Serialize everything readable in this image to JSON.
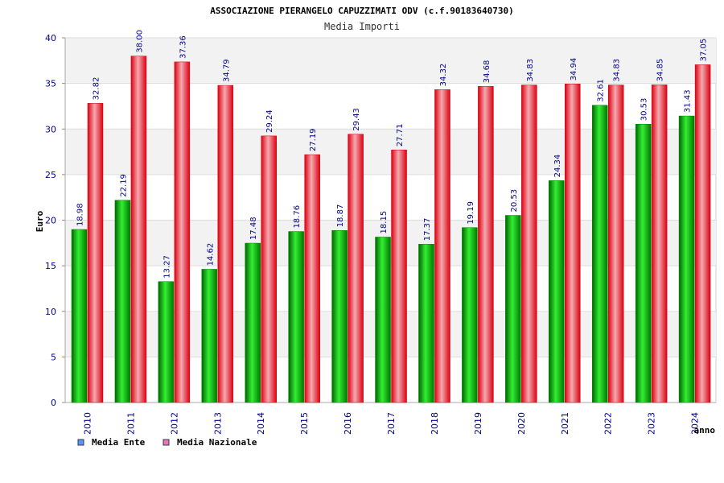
{
  "chart_data": {
    "type": "bar",
    "title": "ASSOCIAZIONE PIERANGELO CAPUZZIMATI ODV (c.f.90183640730)",
    "subtitle": "Media Importi",
    "xlabel": "anno",
    "ylabel": "Euro",
    "ylim": [
      0,
      40
    ],
    "yticks": [
      0,
      5,
      10,
      15,
      20,
      25,
      30,
      35,
      40
    ],
    "categories": [
      "2010",
      "2011",
      "2012",
      "2013",
      "2014",
      "2015",
      "2016",
      "2017",
      "2018",
      "2019",
      "2020",
      "2021",
      "2022",
      "2023",
      "2024"
    ],
    "series": [
      {
        "name": "Media Ente",
        "color": "#00aa00",
        "values": [
          18.98,
          22.19,
          13.27,
          14.62,
          17.48,
          18.76,
          18.87,
          18.15,
          17.37,
          19.19,
          20.53,
          24.34,
          32.61,
          30.53,
          31.43
        ],
        "labels": [
          "18.98",
          "22.19",
          "13.27",
          "14.62",
          "17.48",
          "18.76",
          "18.87",
          "18.15",
          "17.37",
          "19.19",
          "20.53",
          "24.34",
          "32.61",
          "30.53",
          "31.43"
        ]
      },
      {
        "name": "Media Nazionale",
        "color": "#ee1122",
        "values": [
          32.82,
          38.0,
          37.36,
          34.79,
          29.24,
          27.19,
          29.43,
          27.71,
          34.32,
          34.68,
          34.83,
          34.94,
          34.83,
          34.85,
          37.05
        ],
        "labels": [
          "32.82",
          "38.00",
          "37.36",
          "34.79",
          "29.24",
          "27.19",
          "29.43",
          "27.71",
          "34.32",
          "34.68",
          "34.83",
          "34.94",
          "34.83",
          "34.85",
          "37.05"
        ]
      }
    ],
    "legend": {
      "position": "bottom-left",
      "items": [
        {
          "label": "Media Ente",
          "swatch_color": "#5599ee"
        },
        {
          "label": "Media Nazionale",
          "swatch_color": "#ee77aa"
        }
      ]
    },
    "grid": true
  }
}
